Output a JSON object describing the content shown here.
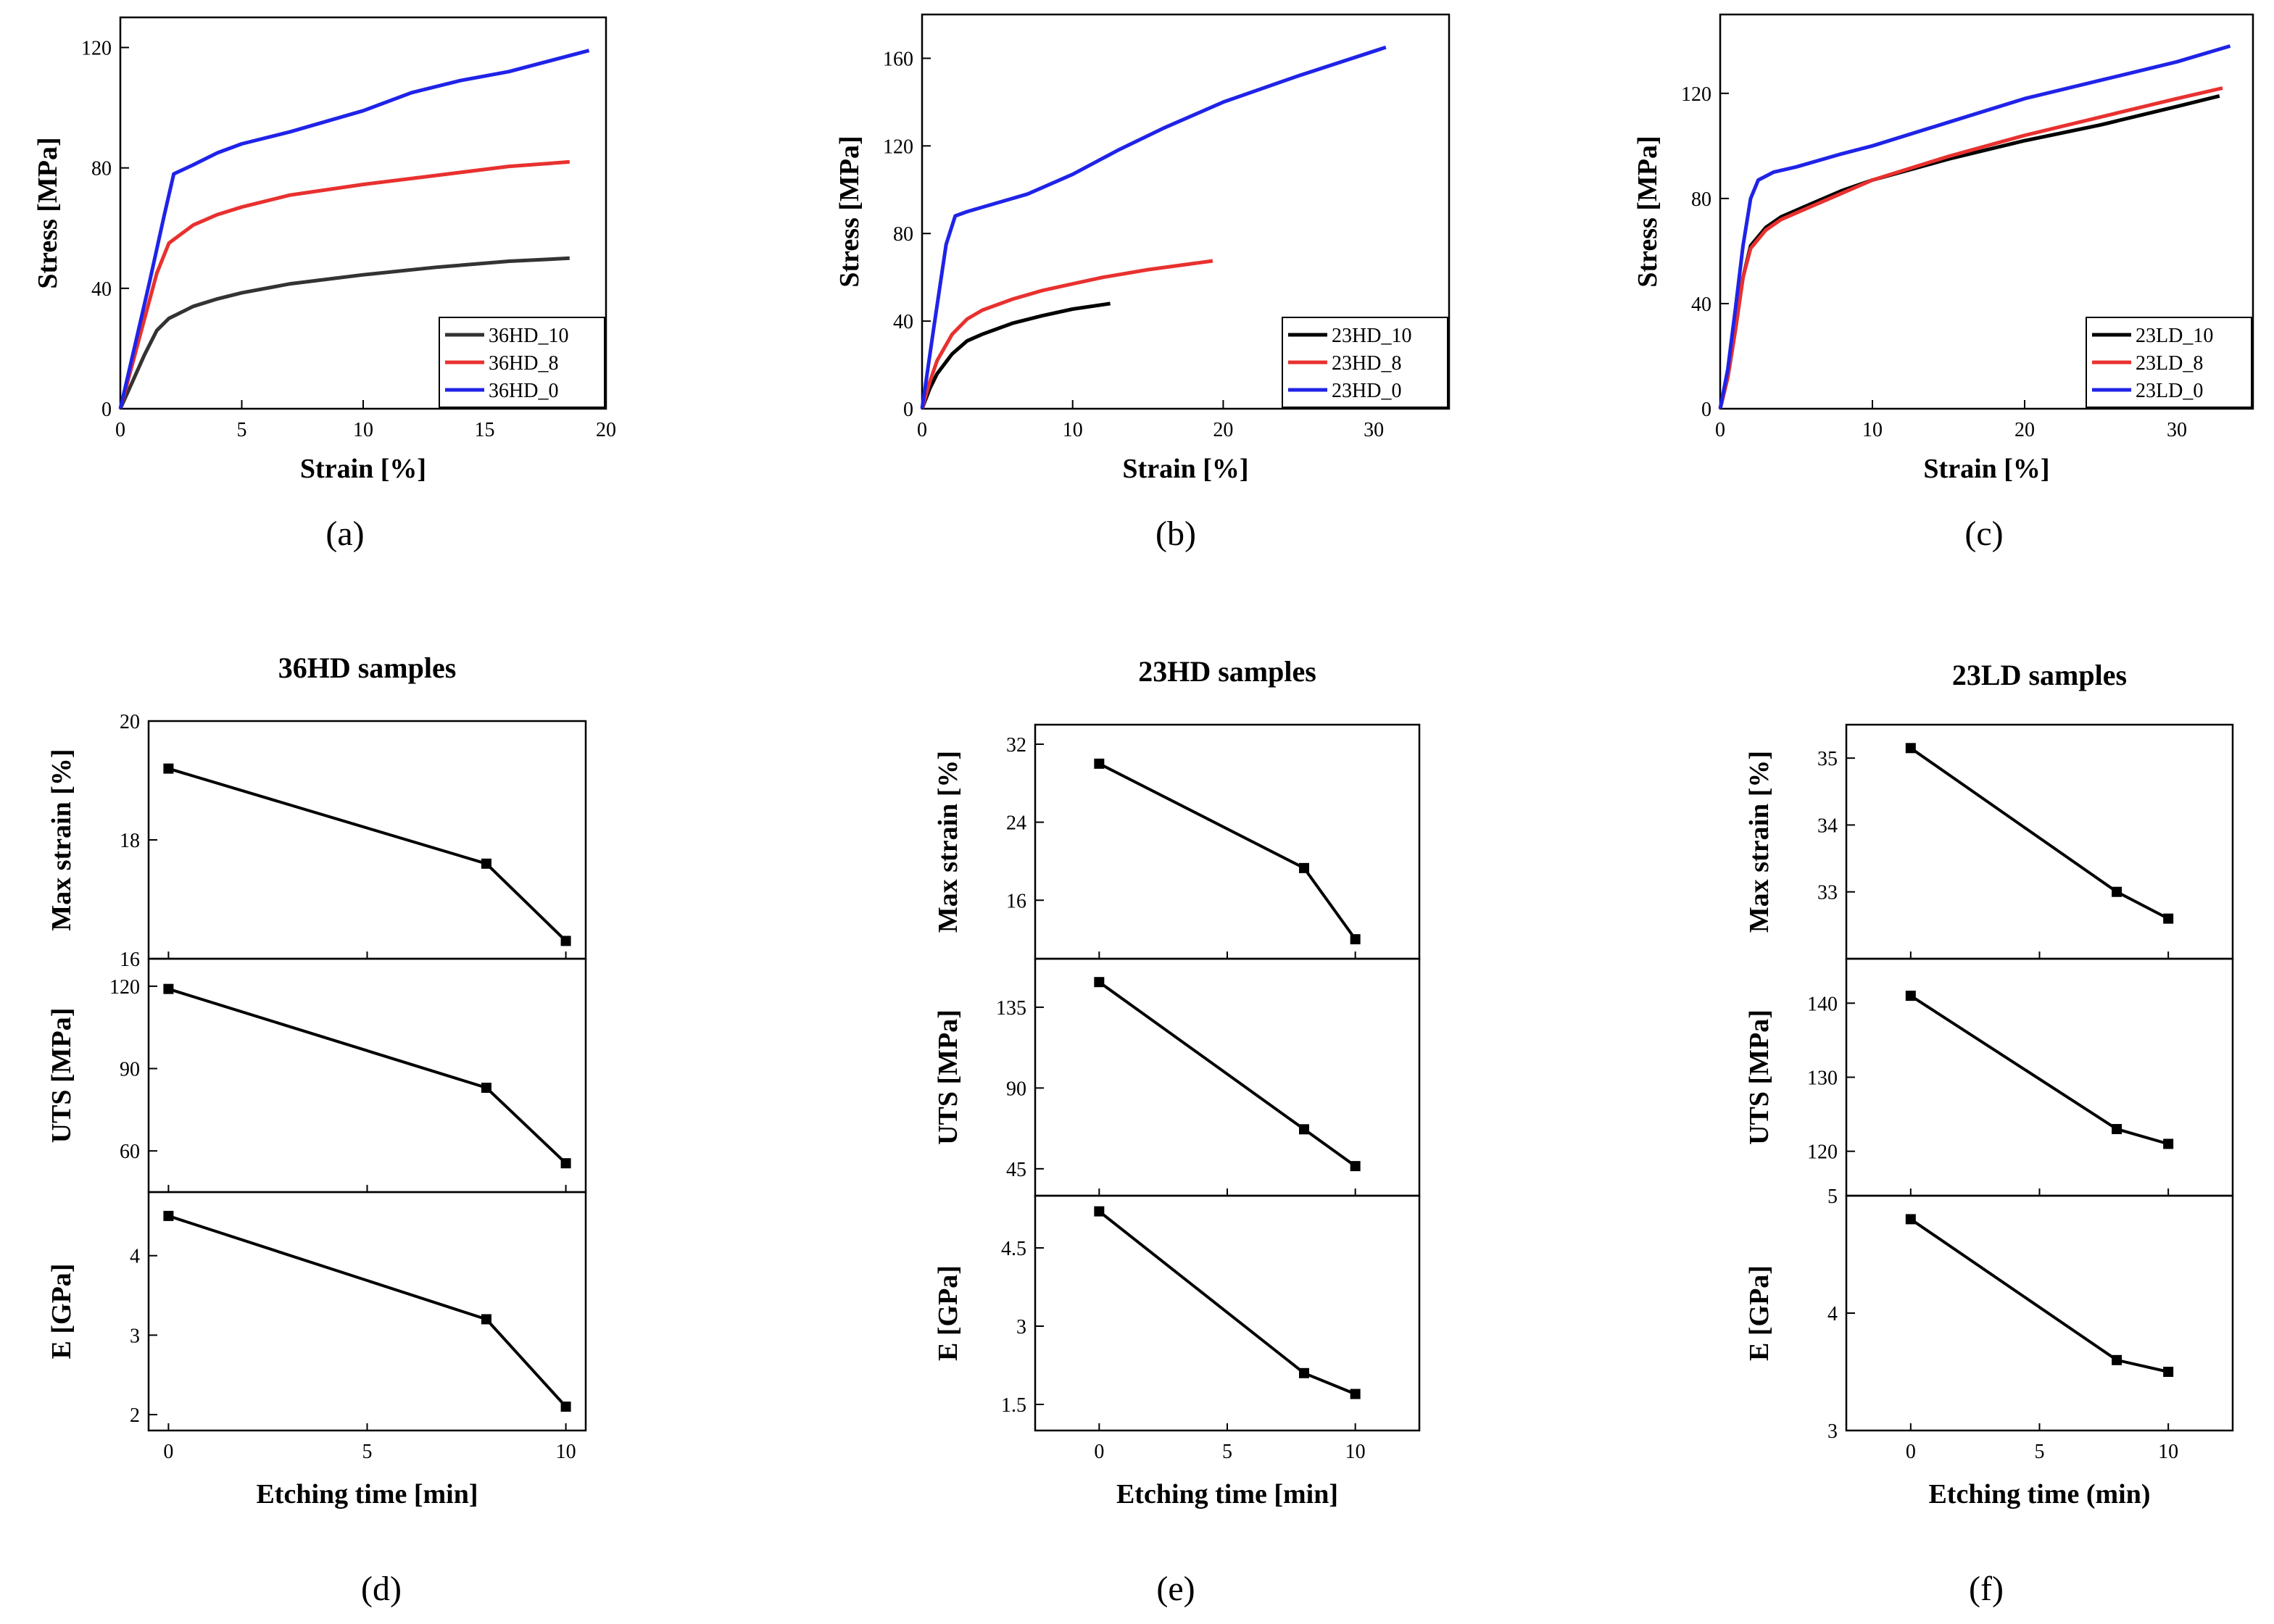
{
  "chart_data": [
    {
      "id": "a",
      "type": "line",
      "caption": "(a)",
      "xlabel": "Strain [%]",
      "ylabel": "Stress [MPa]",
      "xlim": [
        0,
        20
      ],
      "ylim": [
        0,
        130
      ],
      "xticks": [
        0,
        5,
        10,
        15,
        20
      ],
      "yticks": [
        0,
        40,
        80,
        120
      ],
      "legend": "bottom-right",
      "series": [
        {
          "name": "36HD_10",
          "color": "#333333",
          "x": [
            0,
            0.5,
            1,
            1.5,
            2,
            3,
            4,
            5,
            7,
            10,
            13,
            16,
            18.5
          ],
          "y": [
            0,
            9,
            18,
            26,
            30,
            34,
            36.5,
            38.5,
            41.5,
            44.5,
            47,
            49,
            50
          ]
        },
        {
          "name": "36HD_8",
          "color": "#e8312f",
          "x": [
            0,
            0.5,
            1,
            1.5,
            2,
            3,
            4,
            5,
            7,
            10,
            13,
            16,
            18.5
          ],
          "y": [
            0,
            15,
            30,
            45,
            55,
            61,
            64.5,
            67,
            71,
            74.5,
            77.5,
            80.5,
            82
          ]
        },
        {
          "name": "36HD_0",
          "color": "#1f23e8",
          "x": [
            0,
            0.6,
            1.2,
            1.8,
            2.2,
            3,
            4,
            5,
            7,
            10,
            12,
            14,
            16,
            19.3
          ],
          "y": [
            0,
            21,
            42,
            64,
            78,
            81,
            85,
            88,
            92,
            99,
            105,
            109,
            112,
            119
          ]
        }
      ]
    },
    {
      "id": "b",
      "type": "line",
      "caption": "(b)",
      "xlabel": "Strain [%]",
      "ylabel": "Stress [MPa]",
      "xlim": [
        0,
        35
      ],
      "ylim": [
        0,
        180
      ],
      "xticks": [
        0,
        10,
        20,
        30
      ],
      "yticks": [
        0,
        40,
        80,
        120,
        160
      ],
      "legend": "bottom-right",
      "series": [
        {
          "name": "23HD_10",
          "color": "#000000",
          "x": [
            0,
            0.5,
            1,
            2,
            3,
            4,
            6,
            8,
            10,
            12.5
          ],
          "y": [
            0,
            9,
            16,
            25,
            31,
            34,
            39,
            42.5,
            45.5,
            48
          ]
        },
        {
          "name": "23HD_8",
          "color": "#e8312f",
          "x": [
            0,
            0.5,
            1,
            2,
            3,
            4,
            6,
            8,
            10,
            12,
            15,
            19.3
          ],
          "y": [
            0,
            12,
            22,
            34,
            41,
            45,
            50,
            54,
            57,
            60,
            63.5,
            67.5
          ]
        },
        {
          "name": "23HD_0",
          "color": "#1f23e8",
          "x": [
            0,
            0.8,
            1.6,
            2.2,
            3,
            5,
            7,
            10,
            13,
            16,
            20,
            25,
            30.8
          ],
          "y": [
            0,
            38,
            75,
            88,
            90,
            94,
            98,
            107,
            118,
            128,
            140,
            152,
            165
          ]
        }
      ]
    },
    {
      "id": "c",
      "type": "line",
      "caption": "(c)",
      "xlabel": "Strain [%]",
      "ylabel": "Stress [MPa]",
      "xlim": [
        0,
        35
      ],
      "ylim": [
        0,
        150
      ],
      "xticks": [
        0,
        10,
        20,
        30
      ],
      "yticks": [
        0,
        40,
        80,
        120
      ],
      "legend": "bottom-right",
      "series": [
        {
          "name": "23LD_10",
          "color": "#000000",
          "x": [
            0,
            0.5,
            1,
            1.5,
            2,
            3,
            4,
            6,
            8,
            10,
            15,
            20,
            25,
            30,
            32.8
          ],
          "y": [
            0,
            12,
            30,
            50,
            62,
            69,
            73,
            78,
            83,
            87,
            95,
            102,
            108,
            115,
            119
          ]
        },
        {
          "name": "23LD_8",
          "color": "#e8312f",
          "x": [
            0,
            0.5,
            1,
            1.5,
            2,
            3,
            4,
            6,
            8,
            10,
            15,
            20,
            25,
            30,
            33
          ],
          "y": [
            0,
            12,
            30,
            50,
            61,
            68,
            72,
            77,
            82,
            87,
            96,
            104,
            111,
            118,
            122
          ]
        },
        {
          "name": "23LD_0",
          "color": "#1f23e8",
          "x": [
            0,
            0.5,
            1,
            1.5,
            2,
            2.5,
            3.5,
            5,
            8,
            10,
            15,
            20,
            25,
            30,
            33.5
          ],
          "y": [
            0,
            15,
            38,
            62,
            80,
            87,
            90,
            92,
            97,
            100,
            109,
            118,
            125,
            132,
            138
          ]
        }
      ]
    },
    {
      "id": "d",
      "type": "line",
      "caption": "(d)",
      "title": "36HD samples",
      "xlabel": "Etching time [min]",
      "xlim": [
        -0.5,
        10.5
      ],
      "xticks": [
        0,
        5,
        10
      ],
      "x": [
        0,
        8,
        10
      ],
      "panels": [
        {
          "ylabel": "Max strain [%]",
          "ylim": [
            16,
            20
          ],
          "yticks": [
            16,
            18,
            20
          ],
          "values": [
            19.2,
            17.6,
            16.3
          ]
        },
        {
          "ylabel": "UTS [MPa]",
          "ylim": [
            45,
            130
          ],
          "yticks": [
            60,
            90,
            120
          ],
          "values": [
            119,
            83,
            55.5
          ]
        },
        {
          "ylabel": "E [GPa]",
          "ylim": [
            1.8,
            4.8
          ],
          "yticks": [
            2,
            3,
            4
          ],
          "values": [
            4.5,
            3.2,
            2.1
          ]
        }
      ]
    },
    {
      "id": "e",
      "type": "line",
      "caption": "(e)",
      "title": "23HD samples",
      "xlabel": "Etching time [min]",
      "xlim": [
        -2.5,
        12.5
      ],
      "xticks": [
        0,
        5,
        10
      ],
      "x": [
        0,
        8,
        10
      ],
      "panels": [
        {
          "ylabel": "Max strain [%]",
          "ylim": [
            10,
            34
          ],
          "yticks": [
            16,
            24,
            32
          ],
          "values": [
            30,
            19.3,
            12
          ]
        },
        {
          "ylabel": "UTS [MPa]",
          "ylim": [
            30,
            162
          ],
          "yticks": [
            45,
            90,
            135
          ],
          "values": [
            149,
            67,
            46.5
          ]
        },
        {
          "ylabel": "E [GPa]",
          "ylim": [
            1.0,
            5.5
          ],
          "yticks": [
            1.5,
            3.0,
            4.5
          ],
          "values": [
            5.2,
            2.1,
            1.7
          ]
        }
      ]
    },
    {
      "id": "f",
      "type": "line",
      "caption": "(f)",
      "title": "23LD samples",
      "xlabel": "Etching time (min)",
      "xlim": [
        -2.5,
        12.5
      ],
      "xticks": [
        0,
        5,
        10
      ],
      "x": [
        0,
        8,
        10
      ],
      "panels": [
        {
          "ylabel": "Max strain [%]",
          "ylim": [
            32,
            35.5
          ],
          "yticks": [
            33,
            34,
            35
          ],
          "values": [
            35.15,
            33.0,
            32.6
          ]
        },
        {
          "ylabel": "UTS [MPa]",
          "ylim": [
            114,
            146
          ],
          "yticks": [
            120,
            130,
            140
          ],
          "values": [
            141,
            123,
            121
          ]
        },
        {
          "ylabel": "E [GPa]",
          "ylim": [
            3,
            5
          ],
          "yticks": [
            3,
            4,
            5
          ],
          "values": [
            4.8,
            3.6,
            3.5
          ]
        }
      ]
    }
  ]
}
